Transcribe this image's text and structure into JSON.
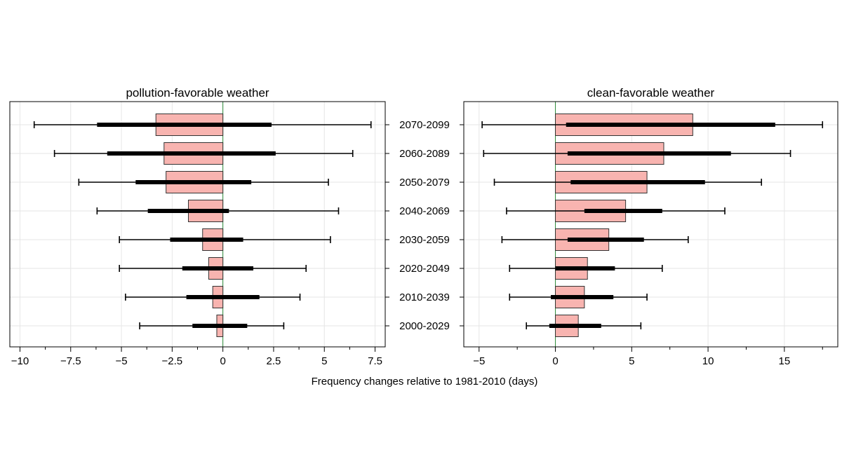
{
  "figure": {
    "xlabel": "Frequency changes relative to 1981-2010 (days)"
  },
  "chart_data": [
    {
      "type": "bar",
      "orientation": "horizontal",
      "title": "pollution-favorable weather",
      "categories": [
        "2070-2099",
        "2060-2089",
        "2050-2079",
        "2040-2069",
        "2030-2059",
        "2020-2049",
        "2010-2039",
        "2000-2029"
      ],
      "xlim": [
        -10.5,
        8.0
      ],
      "xticks": [
        -10,
        -7.5,
        -5,
        -2.5,
        0,
        2.5,
        5,
        7.5
      ],
      "xtick_labels": [
        "−10",
        "−7.5",
        "−5",
        "−2.5",
        "0",
        "2.5",
        "5",
        "7.5"
      ],
      "grid": true,
      "series": [
        {
          "values": [
            -3.3,
            -2.9,
            -2.8,
            -1.7,
            -1.0,
            -0.7,
            -0.5,
            -0.3
          ],
          "whisker_low": [
            -9.3,
            -8.3,
            -7.1,
            -6.2,
            -5.1,
            -5.1,
            -4.8,
            -4.1
          ],
          "whisker_high": [
            7.3,
            6.4,
            5.2,
            5.7,
            5.3,
            4.1,
            3.8,
            3.0
          ],
          "iqr_low": [
            -6.2,
            -5.7,
            -4.3,
            -3.7,
            -2.6,
            -2.0,
            -1.8,
            -1.5
          ],
          "iqr_high": [
            2.4,
            2.6,
            1.4,
            0.3,
            1.0,
            1.5,
            1.8,
            1.2
          ],
          "color": "#f8b4b0"
        }
      ]
    },
    {
      "type": "bar",
      "orientation": "horizontal",
      "title": "clean-favorable weather",
      "categories": [
        "2070-2099",
        "2060-2089",
        "2050-2079",
        "2040-2069",
        "2030-2059",
        "2020-2049",
        "2010-2039",
        "2000-2029"
      ],
      "xlim": [
        -6.0,
        18.5
      ],
      "xticks": [
        -5,
        0,
        5,
        10,
        15
      ],
      "xtick_labels": [
        "−5",
        "0",
        "5",
        "10",
        "15"
      ],
      "grid": true,
      "series": [
        {
          "values": [
            9.0,
            7.1,
            6.0,
            4.6,
            3.5,
            2.1,
            1.9,
            1.5
          ],
          "whisker_low": [
            -4.8,
            -4.7,
            -4.0,
            -3.2,
            -3.5,
            -3.0,
            -3.0,
            -1.9
          ],
          "whisker_high": [
            17.5,
            15.4,
            13.5,
            11.1,
            8.7,
            7.0,
            6.0,
            5.6
          ],
          "iqr_low": [
            0.7,
            0.8,
            1.0,
            1.9,
            0.8,
            0.0,
            -0.3,
            -0.4
          ],
          "iqr_high": [
            14.4,
            11.5,
            9.8,
            7.0,
            5.8,
            3.9,
            3.8,
            3.0
          ],
          "color": "#f8b4b0"
        }
      ]
    }
  ]
}
